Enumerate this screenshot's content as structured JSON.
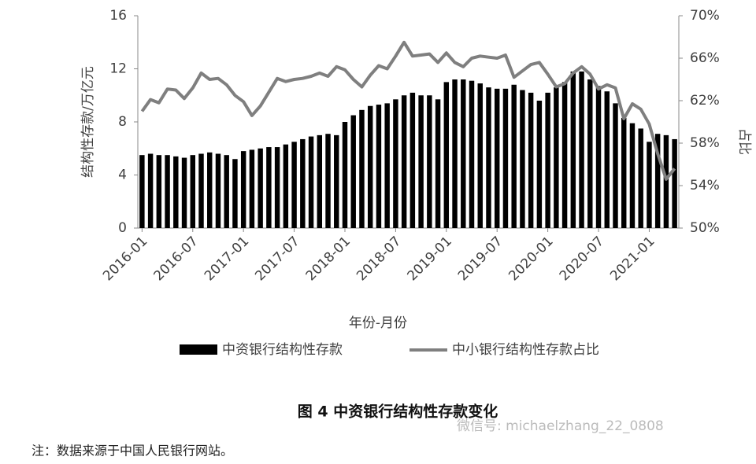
{
  "chart_data": {
    "type": "bar",
    "categories": [
      "2016-01",
      null,
      null,
      null,
      null,
      null,
      "2016-07",
      null,
      null,
      null,
      null,
      null,
      "2017-01",
      null,
      null,
      null,
      null,
      null,
      "2017-07",
      null,
      null,
      null,
      null,
      null,
      "2018-01",
      null,
      null,
      null,
      null,
      null,
      "2018-07",
      null,
      null,
      null,
      null,
      null,
      "2019-01",
      null,
      null,
      null,
      null,
      null,
      "2019-07",
      null,
      null,
      null,
      null,
      null,
      "2020-01",
      null,
      null,
      null,
      null,
      null,
      "2020-07",
      null,
      null,
      null,
      null,
      null,
      "2021-01",
      null,
      null,
      null
    ],
    "series": [
      {
        "name": "中资银行结构性存款",
        "type": "bar",
        "color": "#000000",
        "values": [
          5.5,
          5.6,
          5.5,
          5.5,
          5.4,
          5.3,
          5.5,
          5.6,
          5.7,
          5.6,
          5.5,
          5.2,
          5.8,
          5.9,
          6.0,
          6.1,
          6.1,
          6.3,
          6.5,
          6.7,
          6.9,
          7.0,
          7.1,
          7.0,
          8.0,
          8.5,
          8.9,
          9.2,
          9.3,
          9.4,
          9.7,
          10.0,
          10.2,
          10.0,
          10.0,
          9.7,
          11.0,
          11.2,
          11.2,
          11.1,
          10.9,
          10.6,
          10.5,
          10.5,
          10.8,
          10.4,
          10.2,
          9.6,
          10.2,
          10.6,
          11.0,
          11.8,
          11.8,
          11.2,
          10.7,
          10.3,
          9.4,
          8.3,
          7.9,
          7.5,
          6.5,
          7.1,
          7.0,
          6.7
        ]
      },
      {
        "name": "中小银行结构性存款占比",
        "type": "line",
        "axis": "y2",
        "color": "#7f7f7f",
        "values": [
          61.0,
          62.1,
          61.8,
          63.1,
          63.0,
          62.2,
          63.2,
          64.6,
          64.0,
          64.1,
          63.5,
          62.5,
          61.9,
          60.6,
          61.5,
          62.8,
          64.1,
          63.8,
          64.0,
          64.1,
          64.3,
          64.6,
          64.3,
          65.2,
          64.9,
          64.0,
          63.3,
          64.4,
          65.3,
          65.0,
          66.2,
          67.5,
          66.2,
          66.3,
          66.4,
          65.6,
          66.5,
          65.6,
          65.2,
          66.0,
          66.2,
          66.1,
          66.0,
          66.3,
          64.2,
          64.8,
          65.4,
          65.6,
          64.5,
          63.3,
          63.6,
          64.6,
          65.2,
          64.5,
          63.1,
          63.5,
          63.2,
          60.3,
          61.7,
          61.2,
          59.8,
          57.0,
          54.6,
          55.6
        ]
      }
    ],
    "ylim": [
      0,
      16
    ],
    "yticks": [
      0,
      4,
      8,
      12,
      16
    ],
    "y2lim": [
      50,
      70
    ],
    "y2ticks": [
      {
        "value": 50,
        "label": "50%"
      },
      {
        "value": 54,
        "label": "54%"
      },
      {
        "value": 58,
        "label": "58%"
      },
      {
        "value": 62,
        "label": "62%"
      },
      {
        "value": 66,
        "label": "66%"
      },
      {
        "value": 70,
        "label": "70%"
      }
    ],
    "x_label": "年份-月份",
    "y_label": "结构性存款/万亿元",
    "y2_label": "占比",
    "grid": false
  },
  "caption": "图 4  中资银行结构性存款变化",
  "note": "注：数据来源于中国人民银行网站。",
  "watermark": "微信号: michaelzhang_22_0808"
}
